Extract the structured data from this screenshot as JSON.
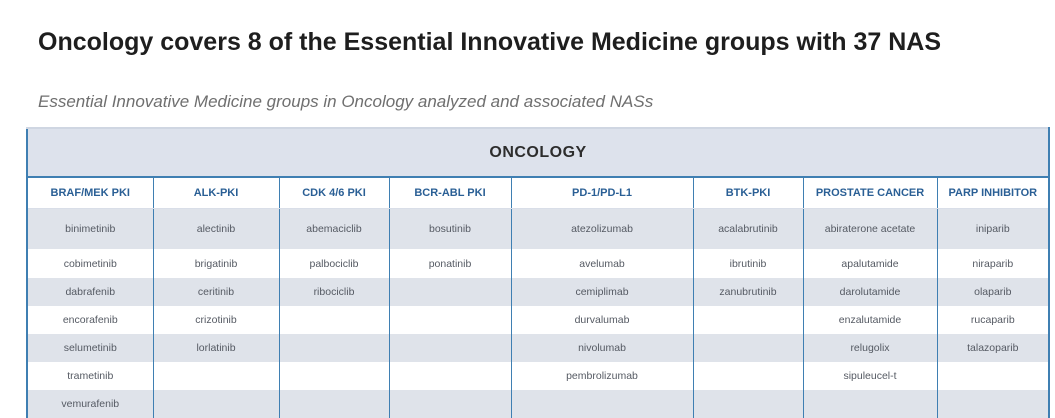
{
  "header": {
    "title": "Oncology covers 8 of the Essential Innovative Medicine groups with 37 NAS",
    "subtitle": "Essential Innovative Medicine groups in Oncology analyzed and associated NASs"
  },
  "table": {
    "banner": "ONCOLOGY",
    "columns": [
      "BRAF/MEK PKI",
      "ALK-PKI",
      "CDK 4/6 PKI",
      "BCR-ABL PKI",
      "PD-1/PD-L1",
      "BTK-PKI",
      "PROSTATE CANCER",
      "PARP INHIBITOR"
    ],
    "rows": [
      [
        "binimetinib",
        "alectinib",
        "abemaciclib",
        "bosutinib",
        "atezolizumab",
        "acalabrutinib",
        "abiraterone acetate",
        "iniparib"
      ],
      [
        "cobimetinib",
        "brigatinib",
        "palbociclib",
        "ponatinib",
        "avelumab",
        "ibrutinib",
        "apalutamide",
        "niraparib"
      ],
      [
        "dabrafenib",
        "ceritinib",
        "ribociclib",
        "",
        "cemiplimab",
        "zanubrutinib",
        "darolutamide",
        "olaparib"
      ],
      [
        "encorafenib",
        "crizotinib",
        "",
        "",
        "durvalumab",
        "",
        "enzalutamide",
        "rucaparib"
      ],
      [
        "selumetinib",
        "lorlatinib",
        "",
        "",
        "nivolumab",
        "",
        "relugolix",
        "talazoparib"
      ],
      [
        "trametinib",
        "",
        "",
        "",
        "pembrolizumab",
        "",
        "sipuleucel-t",
        ""
      ],
      [
        "vemurafenib",
        "",
        "",
        "",
        "",
        "",
        "",
        ""
      ]
    ]
  }
}
